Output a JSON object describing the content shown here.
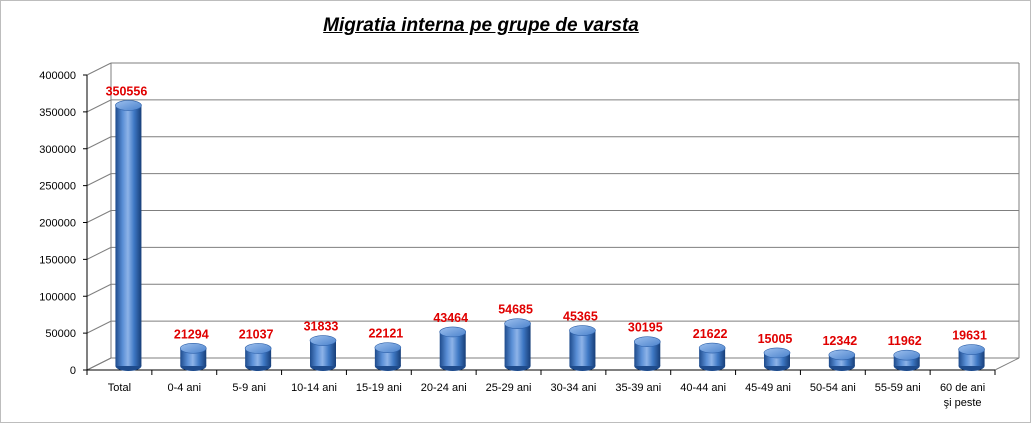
{
  "chart_data": {
    "type": "bar",
    "title": "Migratia interna pe grupe de varsta",
    "xlabel": "",
    "ylabel": "",
    "categories": [
      "Total",
      "0-4 ani",
      "5-9 ani",
      "10-14 ani",
      "15-19 ani",
      "20-24 ani",
      "25-29 ani",
      "30-34 ani",
      "35-39 ani",
      "40-44 ani",
      "45-49 ani",
      "50-54 ani",
      "55-59 ani",
      "60 de ani şi peste"
    ],
    "values": [
      350556,
      21294,
      21037,
      31833,
      22121,
      43464,
      54685,
      45365,
      30195,
      21622,
      15005,
      12342,
      11962,
      19631
    ],
    "ylim": [
      0,
      400000
    ],
    "yticks": [
      0,
      50000,
      100000,
      150000,
      200000,
      250000,
      300000,
      350000,
      400000
    ],
    "grid": true,
    "legend": "none",
    "style": "3d-cylinder",
    "colors": {
      "bar": "#3e78c4",
      "bar_dark": "#1e4b8c",
      "bar_light": "#8db3e8",
      "data_label": "#e00000",
      "grid": "#7f7f7f",
      "wall": "#ffffff"
    }
  }
}
